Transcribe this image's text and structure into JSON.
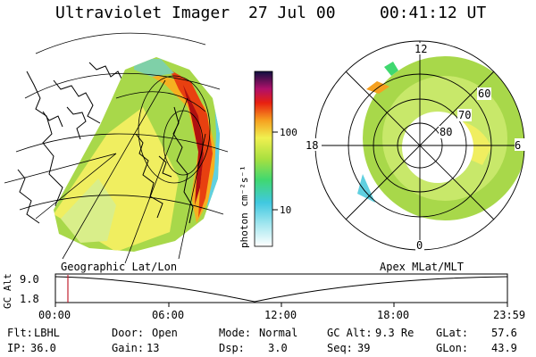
{
  "header": {
    "title": "Ultraviolet Imager",
    "date": "27 Jul 00",
    "time": "00:41:12 UT"
  },
  "colorbar": {
    "unit_label": "photon cm⁻²s⁻¹",
    "tick_100": "100",
    "tick_10": "10"
  },
  "polar_plot": {
    "label_top": "12",
    "label_left": "18",
    "label_right": "6",
    "label_bottom": "0",
    "lat_60": "60",
    "lat_70": "70",
    "lat_80": "80"
  },
  "map_labels": {
    "left": "Geographic Lat/Lon",
    "right": "Apex MLat/MLT"
  },
  "alt_plot": {
    "axis_title": "GC Alt",
    "y_top": "9.0",
    "y_bottom": "1.8",
    "x_ticks": [
      "00:00",
      "06:00",
      "12:00",
      "18:00",
      "23:59"
    ]
  },
  "info": {
    "filter_label": "Flt:",
    "filter_value": "LBHL",
    "ip_label": "IP:",
    "ip_value": "36.0",
    "door_label": "Door:",
    "door_value": "Open",
    "gain_label": "Gain:",
    "gain_value": "13",
    "mode_label": "Mode:",
    "mode_value": "Normal",
    "dsp_label": "Dsp:",
    "dsp_value": "3.0",
    "gcalt_label": "GC Alt:",
    "gcalt_value": "9.3 Re",
    "seq_label": "Seq:",
    "seq_value": "39",
    "glat_label": "GLat:",
    "glat_value": "57.6",
    "glon_label": "GLon:",
    "glon_value": "43.9"
  }
}
